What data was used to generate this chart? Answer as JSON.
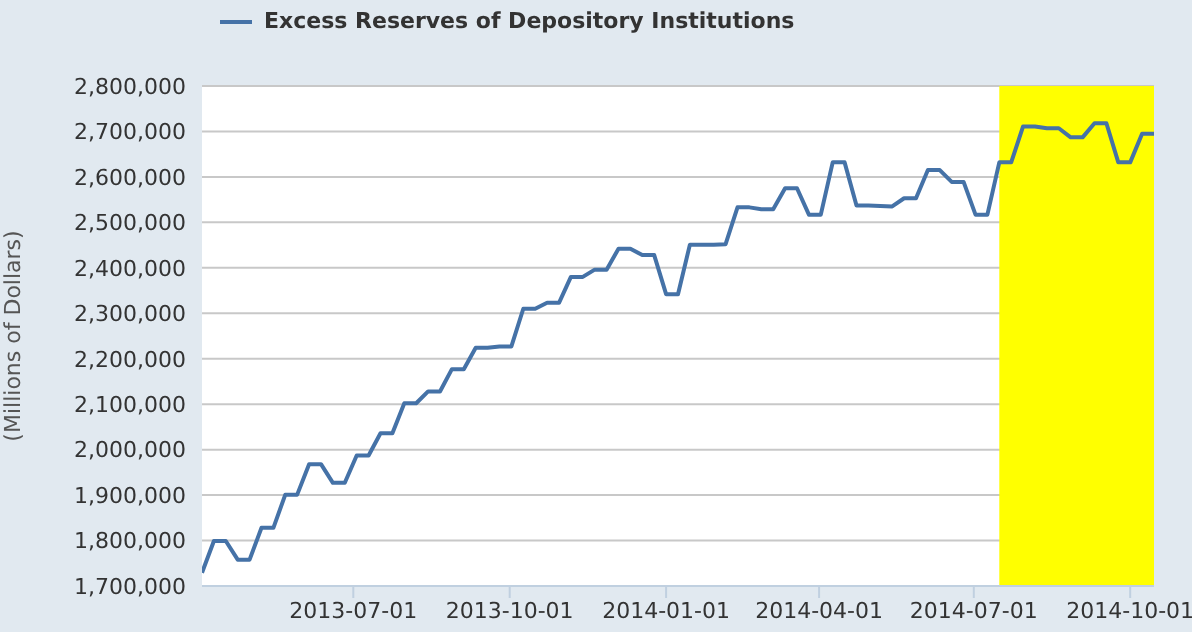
{
  "chart_data": {
    "type": "line",
    "ylabel": "(Millions of Dollars)",
    "x": [
      "2013-04-03",
      "2013-04-10",
      "2013-04-17",
      "2013-04-24",
      "2013-05-01",
      "2013-05-08",
      "2013-05-15",
      "2013-05-22",
      "2013-05-29",
      "2013-06-05",
      "2013-06-12",
      "2013-06-19",
      "2013-06-26",
      "2013-07-03",
      "2013-07-10",
      "2013-07-17",
      "2013-07-24",
      "2013-07-31",
      "2013-08-07",
      "2013-08-14",
      "2013-08-21",
      "2013-08-28",
      "2013-09-04",
      "2013-09-11",
      "2013-09-18",
      "2013-09-25",
      "2013-10-02",
      "2013-10-09",
      "2013-10-16",
      "2013-10-23",
      "2013-10-30",
      "2013-11-06",
      "2013-11-13",
      "2013-11-20",
      "2013-11-27",
      "2013-12-04",
      "2013-12-11",
      "2013-12-18",
      "2013-12-25",
      "2014-01-01",
      "2014-01-08",
      "2014-01-15",
      "2014-01-22",
      "2014-01-29",
      "2014-02-05",
      "2014-02-12",
      "2014-02-19",
      "2014-02-26",
      "2014-03-05",
      "2014-03-12",
      "2014-03-19",
      "2014-03-26",
      "2014-04-02",
      "2014-04-09",
      "2014-04-16",
      "2014-04-23",
      "2014-04-30",
      "2014-05-07",
      "2014-05-14",
      "2014-05-21",
      "2014-05-28",
      "2014-06-04",
      "2014-06-11",
      "2014-06-18",
      "2014-06-25",
      "2014-07-02",
      "2014-07-09",
      "2014-07-16",
      "2014-07-23",
      "2014-07-30",
      "2014-08-06",
      "2014-08-13",
      "2014-08-20",
      "2014-08-27",
      "2014-09-03",
      "2014-09-10",
      "2014-09-17",
      "2014-09-24",
      "2014-10-01",
      "2014-10-08",
      "2014-10-15"
    ],
    "series": [
      {
        "name": "Excess Reserves of Depository Institutions",
        "color": "#4572a7",
        "values": [
          1729000,
          1799000,
          1799000,
          1758000,
          1758000,
          1828000,
          1828000,
          1901000,
          1901000,
          1968000,
          1968000,
          1927000,
          1927000,
          1987000,
          1987000,
          2036000,
          2036000,
          2102000,
          2102000,
          2128000,
          2128000,
          2177000,
          2177000,
          2224000,
          2224000,
          2227000,
          2227000,
          2310000,
          2310000,
          2323000,
          2323000,
          2380000,
          2380000,
          2396000,
          2396000,
          2442000,
          2442000,
          2428000,
          2428000,
          2342000,
          2342000,
          2451000,
          2451000,
          2451000,
          2452000,
          2533000,
          2533000,
          2529000,
          2529000,
          2575000,
          2575000,
          2517000,
          2517000,
          2632000,
          2632000,
          2537000,
          2537000,
          2536000,
          2535000,
          2553000,
          2553000,
          2615000,
          2615000,
          2589000,
          2589000,
          2517000,
          2517000,
          2632000,
          2632000,
          2711000,
          2711000,
          2707000,
          2707000,
          2687000,
          2687000,
          2718000,
          2718000,
          2632000,
          2632000,
          2695000,
          2695000
        ]
      }
    ],
    "xlim": [
      "2013-04-03",
      "2014-10-15"
    ],
    "xticks": [
      "2013-07-01",
      "2013-10-01",
      "2014-01-01",
      "2014-04-01",
      "2014-07-01",
      "2014-10-01"
    ],
    "ylim": [
      1700000,
      2800000
    ],
    "yticks": [
      {
        "value": 1700000,
        "label": "1,700,000"
      },
      {
        "value": 1800000,
        "label": "1,800,000"
      },
      {
        "value": 1900000,
        "label": "1,900,000"
      },
      {
        "value": 2000000,
        "label": "2,000,000"
      },
      {
        "value": 2100000,
        "label": "2,100,000"
      },
      {
        "value": 2200000,
        "label": "2,200,000"
      },
      {
        "value": 2300000,
        "label": "2,300,000"
      },
      {
        "value": 2400000,
        "label": "2,400,000"
      },
      {
        "value": 2500000,
        "label": "2,500,000"
      },
      {
        "value": 2600000,
        "label": "2,600,000"
      },
      {
        "value": 2700000,
        "label": "2,700,000"
      },
      {
        "value": 2800000,
        "label": "2,800,000"
      }
    ],
    "bands": [
      {
        "axis": "x",
        "from": "2014-07-16",
        "to": "2014-10-15",
        "color": "#ffff00"
      }
    ],
    "grid": "y",
    "legend": "top",
    "marker": "none",
    "line_style": "solid"
  }
}
